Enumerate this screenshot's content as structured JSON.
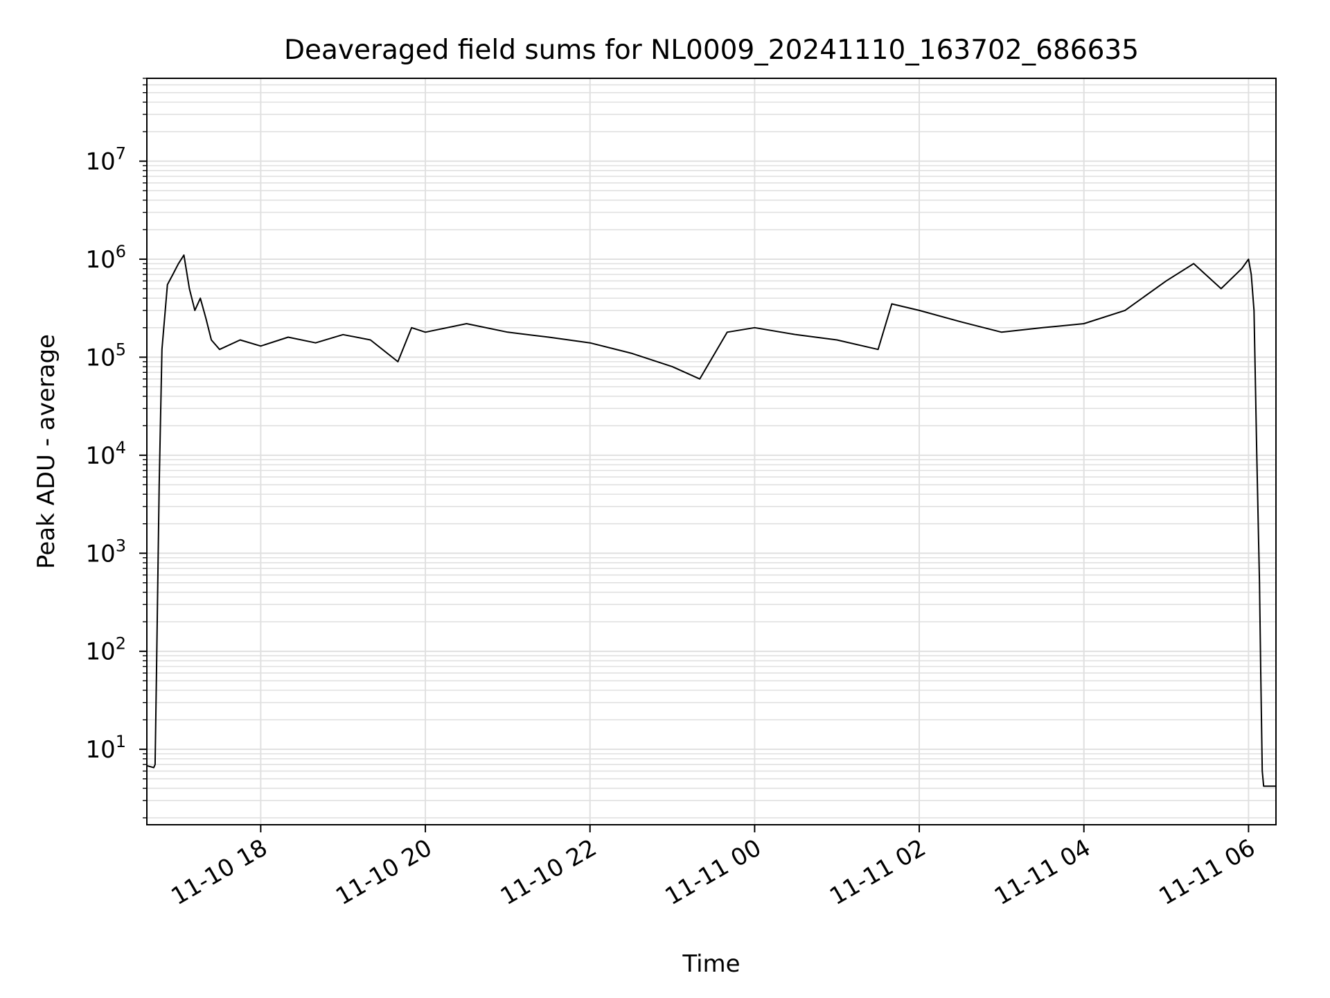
{
  "chart_data": {
    "type": "line",
    "title": "Deaveraged field sums for NL0009_20241110_163702_686635",
    "xlabel": "Time",
    "ylabel": "Peak ADU - average",
    "x_scale": "time",
    "y_scale": "log",
    "xlim": [
      "2024-11-10 16:37",
      "2024-11-11 06:20"
    ],
    "ylim": [
      1.7,
      70000000
    ],
    "x_ticks": [
      {
        "value": "2024-11-10 18:00",
        "label": "11-10 18"
      },
      {
        "value": "2024-11-10 20:00",
        "label": "11-10 20"
      },
      {
        "value": "2024-11-10 22:00",
        "label": "11-10 22"
      },
      {
        "value": "2024-11-11 00:00",
        "label": "11-11 00"
      },
      {
        "value": "2024-11-11 02:00",
        "label": "11-11 02"
      },
      {
        "value": "2024-11-11 04:00",
        "label": "11-11 04"
      },
      {
        "value": "2024-11-11 06:00",
        "label": "11-11 06"
      }
    ],
    "y_ticks": [
      {
        "value": 10,
        "base": "10",
        "exp": "1"
      },
      {
        "value": 100,
        "base": "10",
        "exp": "2"
      },
      {
        "value": 1000,
        "base": "10",
        "exp": "3"
      },
      {
        "value": 10000,
        "base": "10",
        "exp": "4"
      },
      {
        "value": 100000,
        "base": "10",
        "exp": "5"
      },
      {
        "value": 1000000,
        "base": "10",
        "exp": "6"
      },
      {
        "value": 10000000,
        "base": "10",
        "exp": "7"
      }
    ],
    "grid": {
      "major": true,
      "minor_y": true
    },
    "line_color": "#000000",
    "grid_color": "#e0e0e0",
    "series": [
      {
        "points": [
          [
            "2024-11-10 16:37",
            6.8
          ],
          [
            "2024-11-10 16:42",
            6.5
          ],
          [
            "2024-11-10 16:43",
            7
          ],
          [
            "2024-11-10 16:44",
            60
          ],
          [
            "2024-11-10 16:46",
            5000
          ],
          [
            "2024-11-10 16:48",
            120000
          ],
          [
            "2024-11-10 16:52",
            550000
          ],
          [
            "2024-11-10 16:56",
            700000
          ],
          [
            "2024-11-10 17:00",
            900000
          ],
          [
            "2024-11-10 17:04",
            1100000
          ],
          [
            "2024-11-10 17:08",
            500000
          ],
          [
            "2024-11-10 17:12",
            300000
          ],
          [
            "2024-11-10 17:16",
            400000
          ],
          [
            "2024-11-10 17:20",
            250000
          ],
          [
            "2024-11-10 17:24",
            150000
          ],
          [
            "2024-11-10 17:30",
            120000
          ],
          [
            "2024-11-10 17:45",
            150000
          ],
          [
            "2024-11-10 18:00",
            130000
          ],
          [
            "2024-11-10 18:20",
            160000
          ],
          [
            "2024-11-10 18:40",
            140000
          ],
          [
            "2024-11-10 19:00",
            170000
          ],
          [
            "2024-11-10 19:20",
            150000
          ],
          [
            "2024-11-10 19:40",
            90000
          ],
          [
            "2024-11-10 19:50",
            200000
          ],
          [
            "2024-11-10 20:00",
            180000
          ],
          [
            "2024-11-10 20:30",
            220000
          ],
          [
            "2024-11-10 21:00",
            180000
          ],
          [
            "2024-11-10 21:30",
            160000
          ],
          [
            "2024-11-10 22:00",
            140000
          ],
          [
            "2024-11-10 22:30",
            110000
          ],
          [
            "2024-11-10 23:00",
            80000
          ],
          [
            "2024-11-10 23:20",
            60000
          ],
          [
            "2024-11-10 23:40",
            180000
          ],
          [
            "2024-11-11 00:00",
            200000
          ],
          [
            "2024-11-11 00:30",
            170000
          ],
          [
            "2024-11-11 01:00",
            150000
          ],
          [
            "2024-11-11 01:30",
            120000
          ],
          [
            "2024-11-11 01:40",
            350000
          ],
          [
            "2024-11-11 02:00",
            300000
          ],
          [
            "2024-11-11 02:30",
            230000
          ],
          [
            "2024-11-11 03:00",
            180000
          ],
          [
            "2024-11-11 03:30",
            200000
          ],
          [
            "2024-11-11 04:00",
            220000
          ],
          [
            "2024-11-11 04:30",
            300000
          ],
          [
            "2024-11-11 05:00",
            600000
          ],
          [
            "2024-11-11 05:20",
            900000
          ],
          [
            "2024-11-11 05:40",
            500000
          ],
          [
            "2024-11-11 05:55",
            800000
          ],
          [
            "2024-11-11 06:00",
            1000000
          ],
          [
            "2024-11-11 06:02",
            700000
          ],
          [
            "2024-11-11 06:04",
            300000
          ],
          [
            "2024-11-11 06:06",
            10000
          ],
          [
            "2024-11-11 06:08",
            500
          ],
          [
            "2024-11-11 06:09",
            50
          ],
          [
            "2024-11-11 06:10",
            6
          ],
          [
            "2024-11-11 06:11",
            4.2
          ],
          [
            "2024-11-11 06:20",
            4.2
          ]
        ]
      }
    ]
  }
}
